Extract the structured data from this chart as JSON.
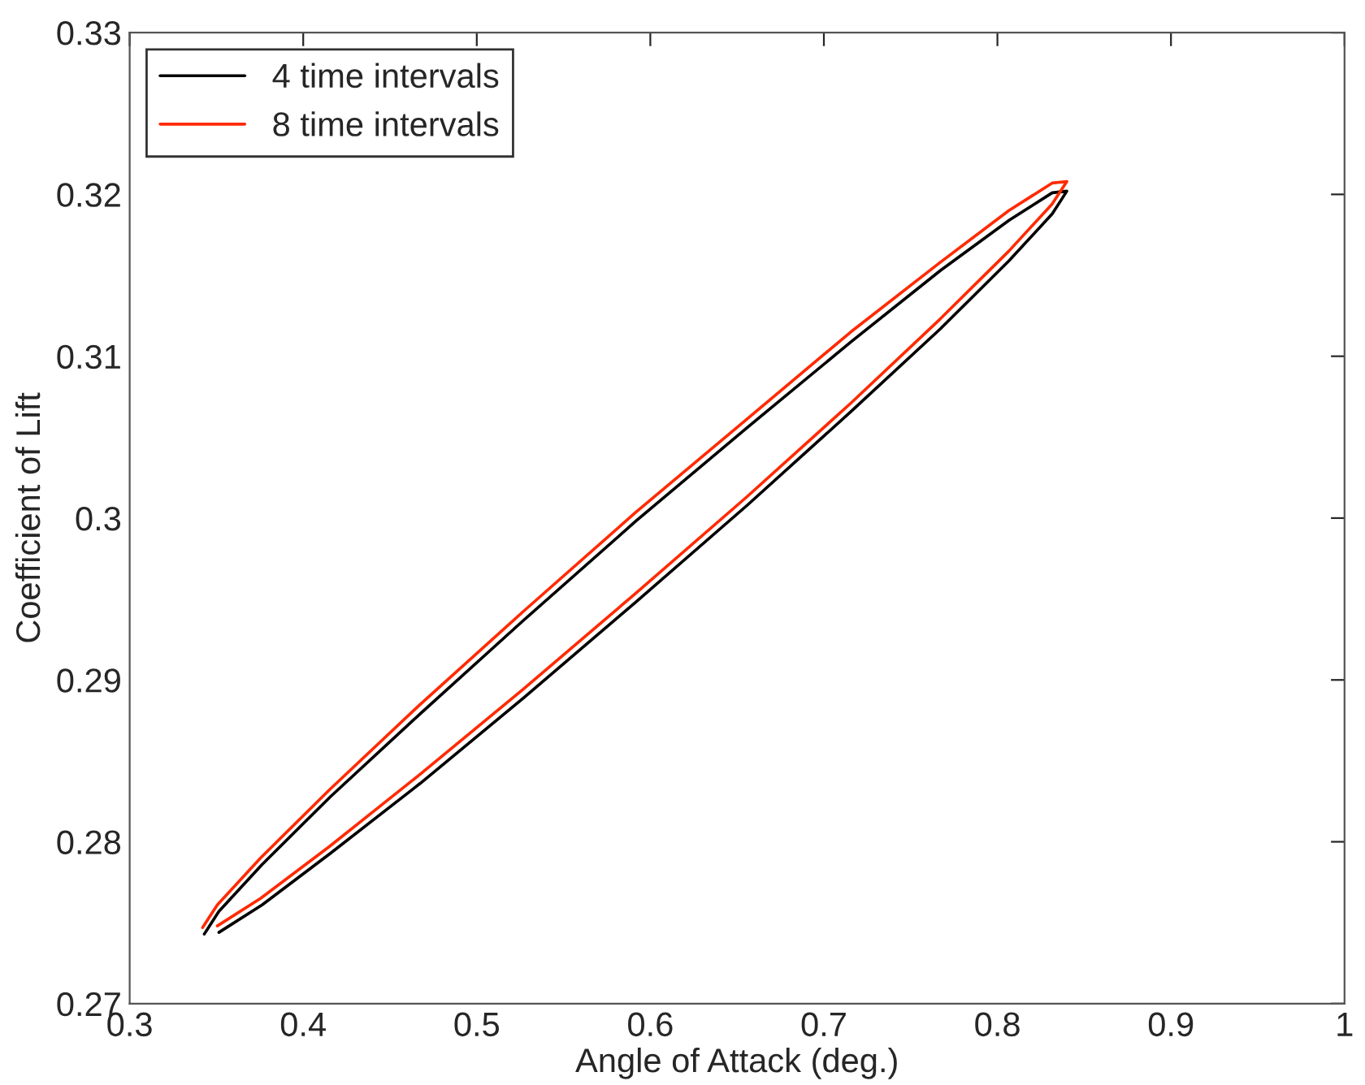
{
  "chart_data": {
    "type": "line",
    "xlabel": "Angle of Attack (deg.)",
    "ylabel": "Coefficient of Lift",
    "xlim": [
      0.3,
      1
    ],
    "xticks": [
      0.3,
      0.4,
      0.5,
      0.6,
      0.7,
      0.8,
      0.9,
      1
    ],
    "ylim": [
      0.27,
      0.33
    ],
    "yticks": [
      0.27,
      0.28,
      0.29,
      0.3,
      0.31,
      0.32,
      0.33
    ],
    "grid": false,
    "legend": "top left",
    "marker": "none",
    "line_style": "solid",
    "series": [
      {
        "name": "4 time intervals",
        "color": "#000000",
        "x": [
          0.343,
          0.3514,
          0.3763,
          0.4158,
          0.4673,
          0.5271,
          0.5915,
          0.6559,
          0.7158,
          0.7672,
          0.8067,
          0.8316,
          0.84,
          0.8316,
          0.8067,
          0.7672,
          0.7158,
          0.6559,
          0.5915,
          0.5271,
          0.4673,
          0.4158,
          0.3763,
          0.3514
        ],
        "values": [
          0.2743,
          0.2757,
          0.2786,
          0.2828,
          0.2879,
          0.2937,
          0.2998,
          0.3056,
          0.3109,
          0.3153,
          0.3184,
          0.3201,
          0.3202,
          0.3188,
          0.3159,
          0.3117,
          0.3066,
          0.3008,
          0.2948,
          0.2889,
          0.2836,
          0.2793,
          0.2761,
          0.2744
        ]
      },
      {
        "name": "8 time intervals",
        "color": "#ff2a00",
        "x": [
          0.342,
          0.3505,
          0.3754,
          0.415,
          0.4665,
          0.5265,
          0.591,
          0.6555,
          0.7155,
          0.767,
          0.8066,
          0.8315,
          0.84,
          0.8315,
          0.8066,
          0.767,
          0.7155,
          0.6555,
          0.591,
          0.5265,
          0.4665,
          0.415,
          0.3754,
          0.3505
        ],
        "values": [
          0.2747,
          0.2761,
          0.279,
          0.2832,
          0.2884,
          0.2942,
          0.3003,
          0.3061,
          0.3115,
          0.3158,
          0.319,
          0.3207,
          0.3208,
          0.3194,
          0.3165,
          0.3123,
          0.3071,
          0.3013,
          0.2953,
          0.2894,
          0.2841,
          0.2797,
          0.2765,
          0.2748
        ]
      }
    ]
  }
}
